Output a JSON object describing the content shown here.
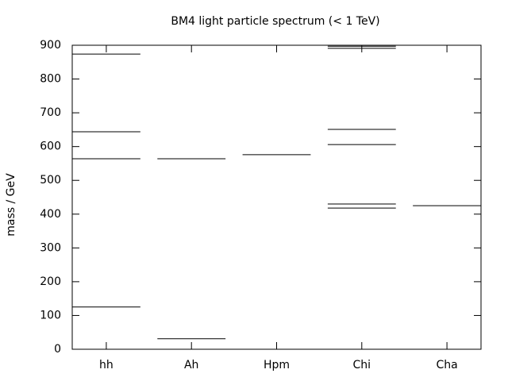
{
  "chart_data": {
    "type": "levels",
    "title": "BM4 light particle spectrum (< 1 TeV)",
    "y_label": "mass / GeV",
    "categories": [
      "hh",
      "Ah",
      "Hpm",
      "Chi",
      "Cha"
    ],
    "values": [
      [
        125,
        564,
        644,
        874
      ],
      [
        31,
        564
      ],
      [
        576
      ],
      [
        418,
        430,
        606,
        651,
        891,
        897
      ],
      [
        425
      ]
    ],
    "color": "#000000",
    "ylim": [
      0,
      900
    ],
    "yticks": [
      0,
      100,
      200,
      300,
      400,
      500,
      600,
      700,
      800,
      900
    ]
  }
}
